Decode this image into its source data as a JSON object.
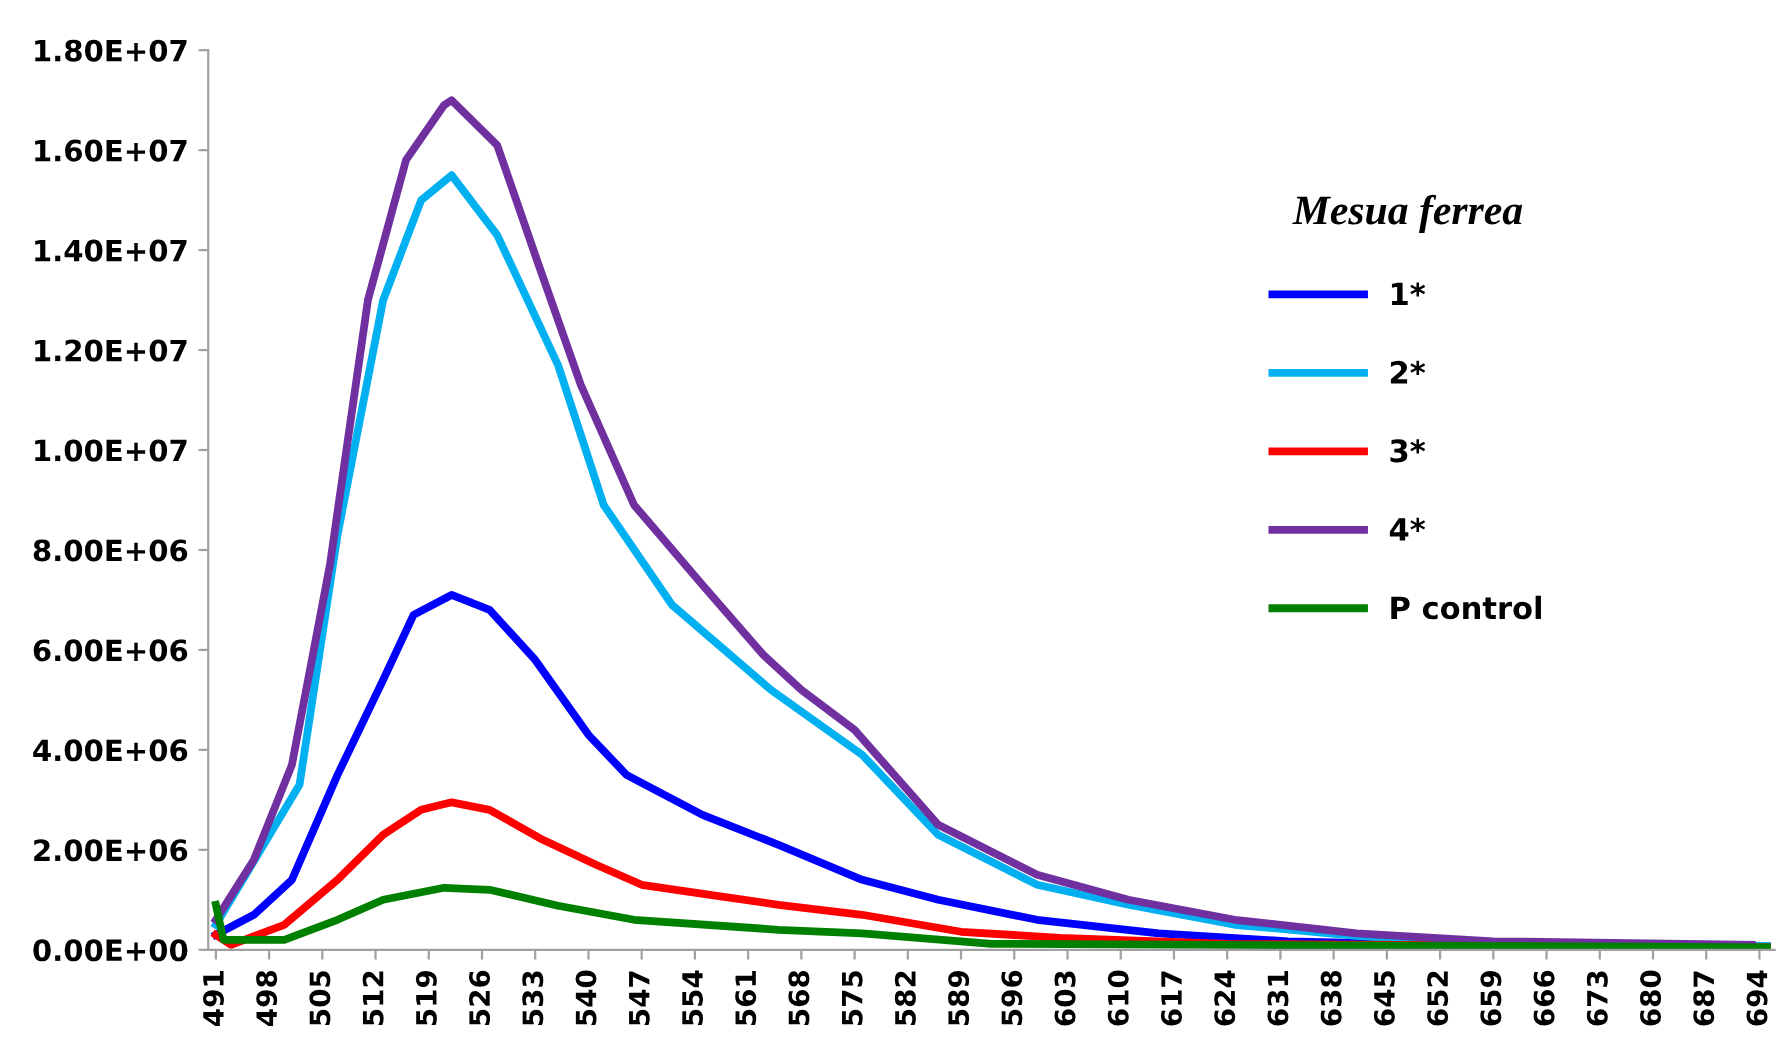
{
  "chart_data": {
    "type": "line",
    "legend_title": "Mesua ferrea",
    "legend": "right",
    "grid": false,
    "line_style": "solid",
    "marker": "none",
    "xlim": [
      490,
      696
    ],
    "xticks": [
      491,
      498,
      505,
      512,
      519,
      526,
      533,
      540,
      547,
      554,
      561,
      568,
      575,
      582,
      589,
      596,
      603,
      610,
      617,
      624,
      631,
      638,
      645,
      652,
      659,
      666,
      673,
      680,
      687,
      694
    ],
    "ylim": [
      0,
      18000000
    ],
    "yticks": [
      {
        "value": 0,
        "label": "0.00E+00"
      },
      {
        "value": 2000000,
        "label": "2.00E+06"
      },
      {
        "value": 4000000,
        "label": "4.00E+06"
      },
      {
        "value": 6000000,
        "label": "6.00E+06"
      },
      {
        "value": 8000000,
        "label": "8.00E+06"
      },
      {
        "value": 10000000,
        "label": "1.00E+07"
      },
      {
        "value": 12000000,
        "label": "1.20E+07"
      },
      {
        "value": 14000000,
        "label": "1.40E+07"
      },
      {
        "value": 16000000,
        "label": "1.60E+07"
      },
      {
        "value": 18000000,
        "label": "1.80E+07"
      }
    ],
    "series": [
      {
        "name": "1*",
        "color": "#0000ff",
        "x": [
          491,
          496,
          501,
          507,
          513,
          517,
          522,
          527,
          533,
          540,
          545,
          555,
          565,
          576,
          586,
          599,
          615,
          632,
          659,
          695
        ],
        "values": [
          300000,
          700000,
          1400000,
          3500000,
          5400000,
          6700000,
          7100000,
          6800000,
          5800000,
          4300000,
          3500000,
          2700000,
          2100000,
          1400000,
          1000000,
          600000,
          330000,
          170000,
          80000,
          50000
        ]
      },
      {
        "name": "2*",
        "color": "#00b0f0",
        "x": [
          491,
          502,
          507,
          513,
          518,
          522,
          528,
          536,
          542,
          551,
          564,
          576,
          586,
          599,
          611,
          625,
          641,
          659,
          695
        ],
        "values": [
          500000,
          3300000,
          8300000,
          13000000,
          15000000,
          15500000,
          14300000,
          11700000,
          8900000,
          6900000,
          5200000,
          3900000,
          2300000,
          1300000,
          900000,
          500000,
          280000,
          100000,
          80000
        ]
      },
      {
        "name": "3*",
        "color": "#ff0000",
        "x": [
          491,
          493,
          500,
          507,
          513,
          518,
          522,
          527,
          534,
          541,
          547,
          556,
          565,
          576,
          589,
          602,
          624,
          695
        ],
        "values": [
          300000,
          100000,
          500000,
          1400000,
          2300000,
          2800000,
          2950000,
          2800000,
          2200000,
          1700000,
          1300000,
          1100000,
          900000,
          700000,
          360000,
          240000,
          120000,
          50000
        ]
      },
      {
        "name": "4*",
        "color": "#7030a0",
        "x": [
          491,
          496,
          501,
          506,
          511,
          516,
          521,
          522,
          528,
          533,
          539,
          546,
          555,
          563,
          568,
          575,
          586,
          599,
          611,
          625,
          641,
          659,
          693
        ],
        "values": [
          600000,
          1800000,
          3700000,
          7700000,
          13000000,
          15800000,
          16900000,
          17000000,
          16100000,
          13900000,
          11300000,
          8900000,
          7300000,
          5900000,
          5200000,
          4400000,
          2500000,
          1500000,
          1000000,
          600000,
          330000,
          170000,
          100000
        ]
      },
      {
        "name": "P control",
        "color": "#008000",
        "x": [
          491,
          492,
          500,
          507,
          513,
          521,
          527,
          536,
          546,
          565,
          576,
          593,
          695
        ],
        "values": [
          900000,
          200000,
          200000,
          600000,
          1000000,
          1240000,
          1200000,
          880000,
          600000,
          400000,
          330000,
          120000,
          50000
        ]
      }
    ]
  }
}
